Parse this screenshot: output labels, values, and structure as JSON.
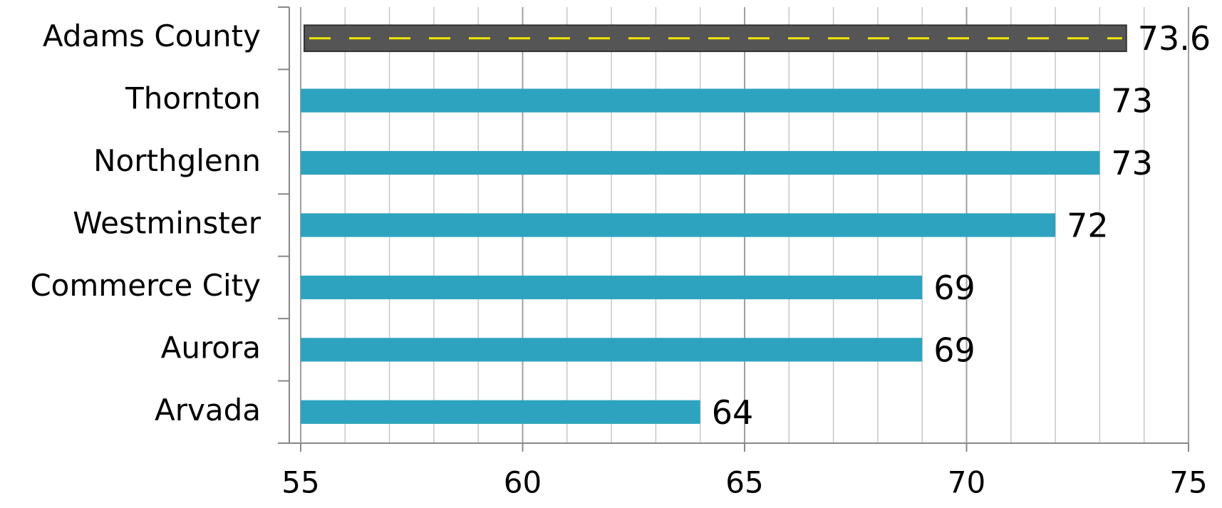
{
  "chart_data": {
    "type": "barh",
    "categories": [
      "Adams County",
      "Thornton",
      "Northglenn",
      "Westminster",
      "Commerce City",
      "Aurora",
      "Arvada"
    ],
    "values": [
      73.6,
      73,
      73,
      72,
      69,
      69,
      64
    ],
    "color": "#2ea3bf",
    "highlight": "Adams County",
    "highlight_color": "#555555",
    "highlight_stripe": "#f2e600",
    "xlim": [
      55,
      75
    ],
    "xticks": [
      55,
      60,
      65,
      70,
      75
    ],
    "grid": true
  }
}
